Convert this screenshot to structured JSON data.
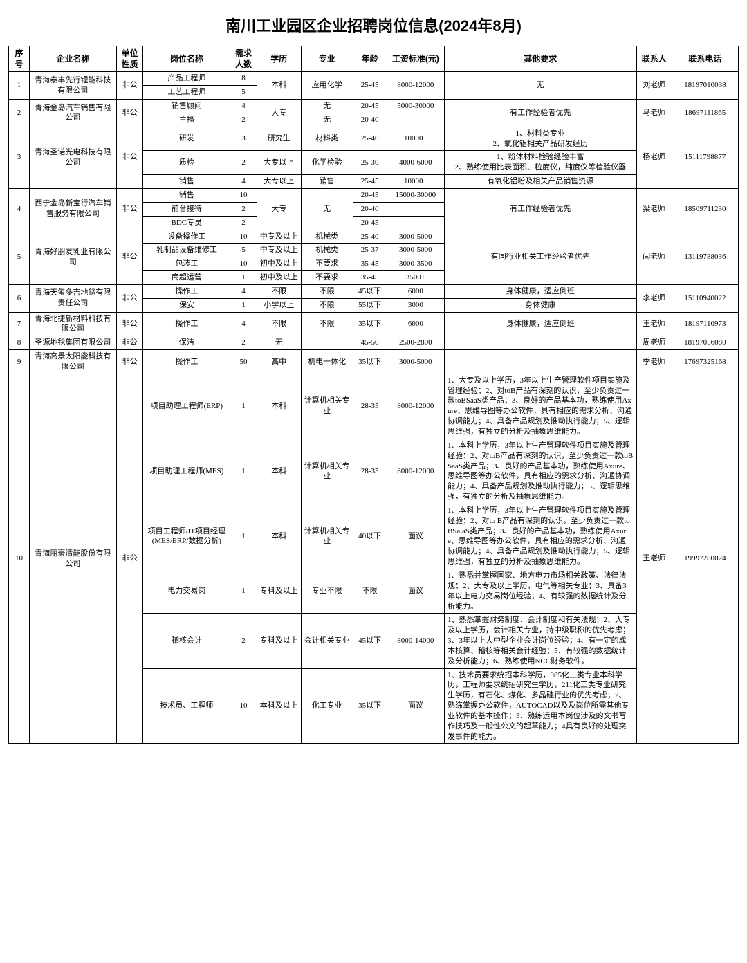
{
  "title": "南川工业园区企业招聘岗位信息(2024年8月)",
  "headers": {
    "seq": "序号",
    "company": "企业名称",
    "nature": "单位性质",
    "position": "岗位名称",
    "count": "需求人数",
    "edu": "学历",
    "major": "专业",
    "age": "年龄",
    "salary": "工资标准(元)",
    "req": "其他要求",
    "contact": "联系人",
    "tel": "联系电话"
  },
  "groups": [
    {
      "seq": "1",
      "company": "青海泰丰先行锂能科技有限公司",
      "nature": "非公",
      "contact": "刘老师",
      "tel": "18197010038",
      "rows": [
        {
          "pos": "产品工程师",
          "num": "8",
          "edu": "本科",
          "edu_span": 2,
          "major": "应用化学",
          "major_span": 2,
          "age": "25-45",
          "age_span": 2,
          "sal": "8000-12000",
          "sal_span": 2,
          "req": "无",
          "req_span": 2
        },
        {
          "pos": "工艺工程师",
          "num": "5"
        }
      ]
    },
    {
      "seq": "2",
      "company": "青海金岛汽车销售有限公司",
      "nature": "非公",
      "contact": "马老师",
      "tel": "18697111865",
      "rows": [
        {
          "pos": "销售顾问",
          "num": "4",
          "edu": "大专",
          "edu_span": 2,
          "major": "无",
          "age": "20-45",
          "sal": "5000-30000",
          "req": "有工作经验者优先",
          "req_span": 2
        },
        {
          "pos": "主播",
          "num": "2",
          "major": "无",
          "age": "20-40",
          "sal": ""
        }
      ]
    },
    {
      "seq": "3",
      "company": "青海圣诺光电科技有限公司",
      "nature": "非公",
      "contact": "杨老师",
      "tel": "15111798877",
      "rows": [
        {
          "pos": "研发",
          "num": "3",
          "edu": "研究生",
          "major": "材料类",
          "age": "25-40",
          "sal": "10000+",
          "req": "1、材料类专业\n2、氧化铝相关产品研发经历"
        },
        {
          "pos": "质检",
          "num": "2",
          "edu": "大专以上",
          "major": "化学检验",
          "age": "25-30",
          "sal": "4000-6000",
          "req": "1、粉体材料检验经验丰富\n2、熟练使用比表面积、粒度仪，纯度仪等检验仪器"
        },
        {
          "pos": "销售",
          "num": "4",
          "edu": "大专以上",
          "major": "销售",
          "age": "25-45",
          "sal": "10000+",
          "req": "有氧化铝粉及相关产品销售资源"
        }
      ]
    },
    {
      "seq": "4",
      "company": "西宁金岛新宝行汽车销售服务有限公司",
      "nature": "非公",
      "contact": "梁老师",
      "tel": "18509711230",
      "rows": [
        {
          "pos": "销售",
          "num": "10",
          "edu": "大专",
          "edu_span": 3,
          "major": "无",
          "major_span": 3,
          "age": "20-45",
          "sal": "15000-30000",
          "req": "有工作经验者优先",
          "req_span": 3
        },
        {
          "pos": "前台接待",
          "num": "2",
          "age": "20-40",
          "sal": ""
        },
        {
          "pos": "BDC专员",
          "num": "2",
          "age": "20-45",
          "sal": ""
        }
      ]
    },
    {
      "seq": "5",
      "company": "青海好朋友乳业有限公司",
      "nature": "非公",
      "contact": "闫老师",
      "tel": "13119788036",
      "rows": [
        {
          "pos": "设备操作工",
          "num": "10",
          "edu": "中专及以上",
          "major": "机械类",
          "age": "25-40",
          "sal": "3000-5000",
          "req": "有同行业相关工作经验者优先",
          "req_span": 4
        },
        {
          "pos": "乳制品设备维修工",
          "num": "5",
          "edu": "中专及以上",
          "major": "机械类",
          "age": "25-37",
          "sal": "3000-5000"
        },
        {
          "pos": "包装工",
          "num": "10",
          "edu": "初中及以上",
          "major": "不要求",
          "age": "35-45",
          "sal": "3000-3500"
        },
        {
          "pos": "商超运营",
          "num": "1",
          "edu": "初中及以上",
          "major": "不要求",
          "age": "35-45",
          "sal": "3500+"
        }
      ]
    },
    {
      "seq": "6",
      "company": "青海天玺多吉地毯有限责任公司",
      "nature": "非公",
      "contact": "李老师",
      "tel": "15110940022",
      "rows": [
        {
          "pos": "操作工",
          "num": "4",
          "edu": "不限",
          "major": "不限",
          "age": "45以下",
          "sal": "6000",
          "req": "身体健康，适应倒班"
        },
        {
          "pos": "保安",
          "num": "1",
          "edu": "小学以上",
          "major": "不限",
          "age": "55以下",
          "sal": "3000",
          "req": "身体健康"
        }
      ]
    },
    {
      "seq": "7",
      "company": "青海北捷新材料科技有限公司",
      "nature": "非公",
      "contact": "王老师",
      "tel": "18197110973",
      "rows": [
        {
          "pos": "操作工",
          "num": "4",
          "edu": "不限",
          "major": "不限",
          "age": "35以下",
          "sal": "6000",
          "req": "身体健康，适应倒班"
        }
      ]
    },
    {
      "seq": "8",
      "company": "圣源地毯集团有限公司",
      "nature": "非公",
      "contact": "周老师",
      "tel": "18197056080",
      "rows": [
        {
          "pos": "保洁",
          "num": "2",
          "edu": "无",
          "major": "",
          "age": "45-50",
          "sal": "2500-2800",
          "req": ""
        }
      ]
    },
    {
      "seq": "9",
      "company": "青海高景太阳能科技有限公司",
      "nature": "非公",
      "contact": "季老师",
      "tel": "17697325168",
      "rows": [
        {
          "pos": "操作工",
          "num": "50",
          "edu": "高中",
          "major": "机电一体化",
          "age": "35以下",
          "sal": "3000-5000",
          "req": ""
        }
      ]
    },
    {
      "seq": "10",
      "company": "青海丽豪清能股份有限公司",
      "nature": "非公",
      "contact": "王老师",
      "tel": "19997280024",
      "rows": [
        {
          "pos": "项目助理工程师(ERP)",
          "num": "1",
          "edu": "本科",
          "major": "计算机相关专业",
          "age": "28-35",
          "sal": "8000-12000",
          "req": "1、大专及以上学历，3年以上生产管理软件项目实施及管理经验；2、对toB产品有深刻的认识，至少负责过一款toBSaaS类产品；3、良好的产品基本功，熟练使用Axure、思维导图等办公软件，具有相应的需求分析、沟通协调能力；4、具备产品规划及推动执行能力；5、逻辑思维强，有独立的分析及抽象思维能力。",
          "req_class": "left"
        },
        {
          "pos": "项目助理工程师(MES)",
          "num": "1",
          "edu": "本科",
          "major": "计算机相关专业",
          "age": "28-35",
          "sal": "8000-12000",
          "req": "1、本科上学历，3年以上生产管理软件项目实施及管理经验；2、对toB产品有深刻的认识，至少负责过一款toBSaaS类产品；3、良好的产品基本功，熟练使用Axure、思维导图等办公软件，具有相应的需求分析、沟通协调能力；4、具备产品规划及推动执行能力；5、逻辑思维强，有独立的分析及抽象思维能力。",
          "req_class": "left"
        },
        {
          "pos": "项目工程师/IT项目经理(MES/ERP/数据分析)",
          "num": "1",
          "edu": "本科",
          "major": "计算机相关专业",
          "age": "40以下",
          "sal": "面议",
          "req": "1、本科上学历，3年以上生产管理软件项目实施及管理经验；2、对to B产品有深刻的认识，至少负责过一款to BSa aS类产品；3、良好的产品基本功，熟练使用Axure、思维导图等办公软件，具有相应的需求分析、沟通协调能力；4、具备产品规划及推动执行能力；5、逻辑思维强，有独立的分析及抽象思维能力。",
          "req_class": "left"
        },
        {
          "pos": "电力交易岗",
          "num": "1",
          "edu": "专科及以上",
          "major": "专业不限",
          "age": "不限",
          "sal": "面议",
          "req": "1、熟悉并掌握国家、地方电力市场相关政策、法律法规；2、大专及以上学历，电气等相关专业；3、具备3年以上电力交易岗位经验；4、有较强的数据统计及分析能力。",
          "req_class": "left"
        },
        {
          "pos": "稽核会计",
          "num": "2",
          "edu": "专科及以上",
          "major": "会计相关专业",
          "age": "45以下",
          "sal": "8000-14000",
          "req": "1、熟悉掌握财务制度、会计制度和有关法规；2、大专及以上学历，会计相关专业，持中级职称的优先考虑；3、3年以上大中型企业会计岗位经验；4、有一定的成本核算、稽核等相关会计经验；5、有较强的数据统计及分析能力；6、熟练使用NCC财务软件。",
          "req_class": "left"
        },
        {
          "pos": "技术员、工程师",
          "num": "10",
          "edu": "本科及以上",
          "major": "化工专业",
          "age": "35以下",
          "sal": "面议",
          "req": "1、技术员要求统招本科学历，985化工类专业本科学历，工程师要求统招研究生学历，211化工类专业研究生学历，有石化、煤化、多晶硅行业的优先考虑；2、熟练掌握办公软件，AUTOCAD以及及岗位所需其他专业软件的基本操作；3、熟练运用本岗位涉及的文书写作技巧及一般性公文的起草能力；4具有良好的处理突发事件的能力。",
          "req_class": "left"
        }
      ]
    }
  ]
}
